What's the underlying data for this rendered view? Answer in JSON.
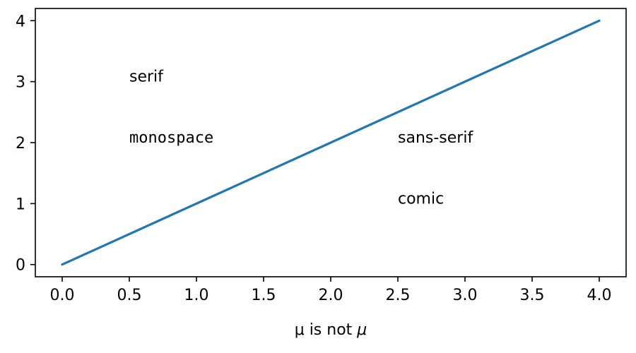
{
  "chart_data": {
    "type": "line",
    "title": "",
    "xlabel": "μ is not ",
    "xlabel_math": "μ",
    "ylabel": "",
    "xlim": [
      -0.2,
      4.2
    ],
    "ylim": [
      -0.2,
      4.2
    ],
    "x_ticks": [
      0.0,
      0.5,
      1.0,
      1.5,
      2.0,
      2.5,
      3.0,
      3.5,
      4.0
    ],
    "x_tick_labels": [
      "0.0",
      "0.5",
      "1.0",
      "1.5",
      "2.0",
      "2.5",
      "3.0",
      "3.5",
      "4.0"
    ],
    "y_ticks": [
      0,
      1,
      2,
      3,
      4
    ],
    "y_tick_labels": [
      "0",
      "1",
      "2",
      "3",
      "4"
    ],
    "grid": false,
    "series": [
      {
        "color": "#1f77b4",
        "x": [
          0,
          1,
          2,
          3,
          4
        ],
        "y": [
          0,
          1,
          2,
          3,
          4
        ]
      }
    ],
    "annotations": [
      {
        "text": "serif",
        "x": 0.5,
        "y": 3,
        "font": "serif"
      },
      {
        "text": "monospace",
        "x": 0.5,
        "y": 2,
        "font": "monospace"
      },
      {
        "text": "sans-serif",
        "x": 2.5,
        "y": 2,
        "font": "sans-serif"
      },
      {
        "text": "comic",
        "x": 2.5,
        "y": 1,
        "font": "comic"
      }
    ]
  }
}
